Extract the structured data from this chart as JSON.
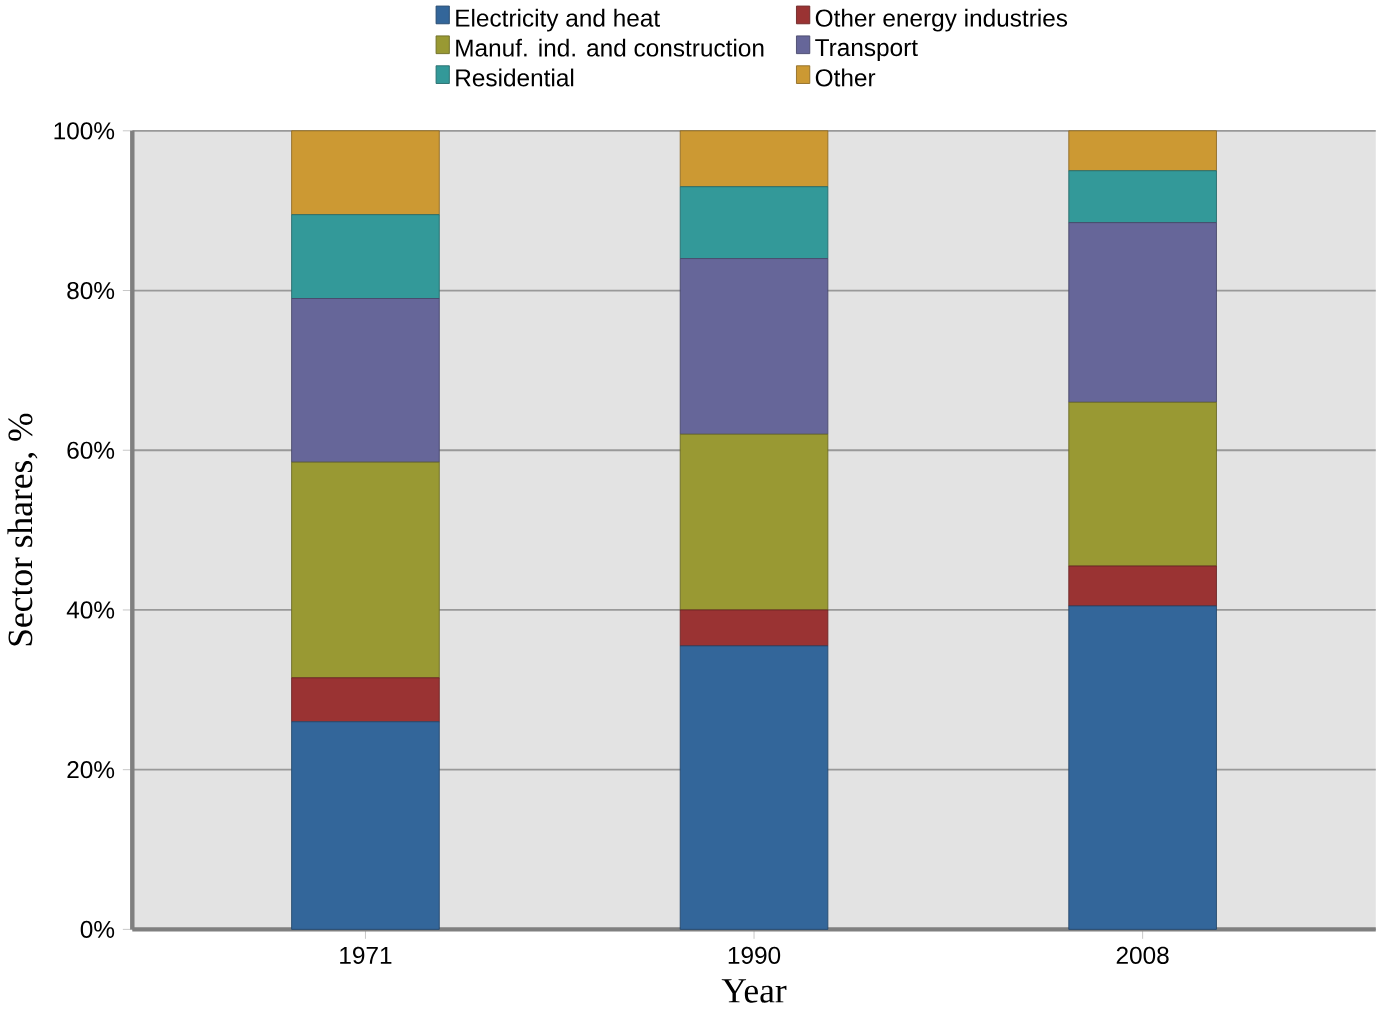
{
  "chart_data": {
    "type": "bar",
    "stacked": true,
    "xlabel": "Year",
    "ylabel": "Sector shares, %",
    "categories": [
      "1971",
      "1990",
      "2008"
    ],
    "series": [
      {
        "name": "Electricity and heat",
        "color": "#33669a",
        "values": [
          26,
          35.5,
          40.5
        ]
      },
      {
        "name": "Other energy industries",
        "color": "#9a3333",
        "values": [
          5.5,
          4.5,
          5
        ]
      },
      {
        "name": "Manuf. ind. and construction",
        "color": "#999933",
        "values": [
          27,
          22,
          20.5
        ]
      },
      {
        "name": "Transport",
        "color": "#666699",
        "values": [
          20.5,
          22,
          22.5
        ]
      },
      {
        "name": "Residential",
        "color": "#339999",
        "values": [
          10.5,
          9,
          6.5
        ]
      },
      {
        "name": "Other",
        "color": "#cc9933",
        "values": [
          10.5,
          7,
          5
        ]
      }
    ],
    "ylim": [
      0,
      100
    ],
    "yticks": [
      {
        "value": 0,
        "label": "0%"
      },
      {
        "value": 20,
        "label": "20%"
      },
      {
        "value": 40,
        "label": "40%"
      },
      {
        "value": 60,
        "label": "60%"
      },
      {
        "value": 80,
        "label": "80%"
      },
      {
        "value": 100,
        "label": "100%"
      }
    ],
    "grid": "y",
    "legend": "top"
  }
}
